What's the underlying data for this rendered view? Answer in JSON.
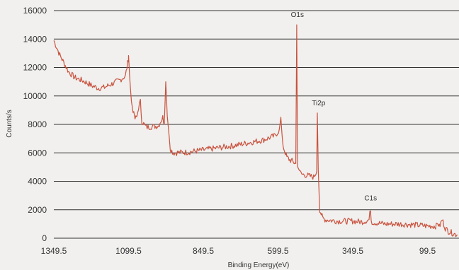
{
  "chart_data": {
    "type": "line",
    "title": "",
    "xlabel": "Binding Energy(eV)",
    "ylabel": "Counts/s",
    "x_reversed": true,
    "xlim": [
      1349.5,
      0
    ],
    "ylim": [
      0,
      16000
    ],
    "x_ticks": [
      1349.5,
      1099.5,
      849.5,
      599.5,
      349.5,
      99.5
    ],
    "x_tick_labels": [
      "1349.5",
      "1099.5",
      "849.5",
      "599.5",
      "349.5",
      "99.5"
    ],
    "y_ticks": [
      0,
      2000,
      4000,
      6000,
      8000,
      10000,
      12000,
      14000,
      16000
    ],
    "y_tick_labels": [
      "0",
      "2000",
      "4000",
      "6000",
      "8000",
      "10000",
      "12000",
      "14000",
      "16000"
    ],
    "grid": "horizontal",
    "line_color": "#c9533f",
    "series": [
      {
        "x": [
          1349.5,
          1330,
          1300,
          1280,
          1250,
          1220,
          1200,
          1180,
          1150,
          1130,
          1110,
          1100,
          1099.5,
          1096,
          1090,
          1082,
          1078,
          1072,
          1066,
          1060,
          1055,
          1040,
          1020,
          1000,
          985,
          980,
          975,
          970,
          960,
          950,
          900,
          850,
          800,
          750,
          700,
          650,
          610,
          595,
          590,
          585,
          580,
          570,
          560,
          550,
          545,
          540,
          537,
          534,
          530,
          525,
          520,
          500,
          480,
          475,
          470,
          468,
          465,
          460,
          450,
          440,
          420,
          400,
          380,
          350,
          320,
          300,
          295,
          290,
          288,
          285,
          280,
          260,
          240,
          200,
          150,
          120,
          100,
          80,
          70,
          65,
          60,
          50,
          40,
          30,
          20,
          10,
          0
        ],
        "y": [
          13900,
          12900,
          11700,
          11300,
          11050,
          10700,
          10550,
          10600,
          10900,
          11100,
          11400,
          12600,
          12900,
          11400,
          9600,
          8700,
          8400,
          8500,
          9200,
          9600,
          8200,
          7800,
          7850,
          7900,
          8500,
          8000,
          11000,
          8600,
          6300,
          6000,
          6050,
          6200,
          6350,
          6500,
          6700,
          6900,
          7200,
          7600,
          8500,
          6800,
          6300,
          5700,
          5500,
          5400,
          5300,
          5250,
          15000,
          5000,
          5000,
          4600,
          4500,
          4400,
          4300,
          4500,
          4700,
          8800,
          4800,
          2000,
          1400,
          1300,
          1250,
          1200,
          1200,
          1200,
          1150,
          1250,
          1300,
          2100,
          1300,
          1150,
          1100,
          1050,
          1000,
          1000,
          950,
          900,
          850,
          850,
          850,
          1100,
          800,
          1300,
          700,
          500,
          400,
          300,
          250
        ]
      }
    ],
    "annotations": [
      {
        "text": "O1s",
        "x": 530,
        "y": 15000
      },
      {
        "text": "Ti2p",
        "x": 459,
        "y": 8800
      },
      {
        "text": "C1s",
        "x": 285,
        "y": 2100
      }
    ]
  }
}
